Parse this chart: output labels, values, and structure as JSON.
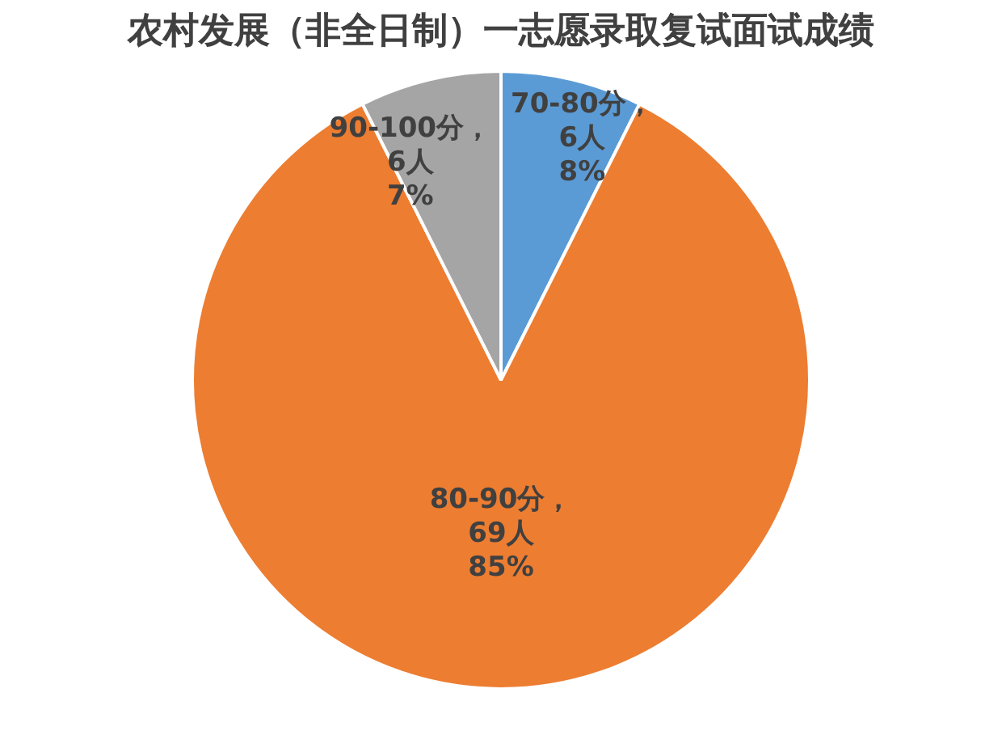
{
  "chart_data": {
    "type": "pie",
    "title": "农村发展（非全日制）一志愿录取复试面试成绩",
    "categories": [
      "70-80分",
      "80-90分",
      "90-100分"
    ],
    "values": [
      6,
      69,
      6
    ],
    "colors": [
      "#5b9bd5",
      "#ed7d31",
      "#a5a5a5"
    ],
    "value_labels": [
      "，\n6人\n8%",
      "，\n69人\n85%",
      "，\n6人\n7%"
    ],
    "legend": false
  }
}
